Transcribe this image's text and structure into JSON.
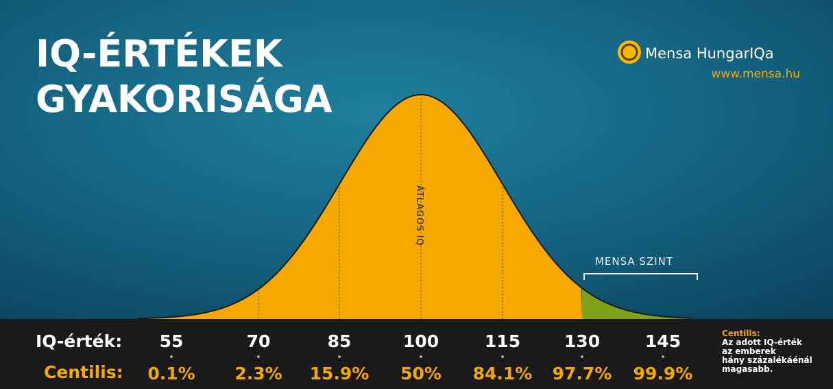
{
  "title": [
    "IQ-ÉRTÉKEK",
    "GYAKORISÁGA"
  ],
  "logo": {
    "name": "Mensa HungarIQa",
    "url": "www.mensa.hu"
  },
  "curve_label": "ÁTLAGOS IQ",
  "mensa_label": "MENSA SZINT",
  "table": {
    "row_labels": [
      "IQ-érték:",
      "Centilis:"
    ],
    "iq": [
      "55",
      "70",
      "85",
      "100",
      "115",
      "130",
      "145"
    ],
    "centiles": [
      "0.1%",
      "2.3%",
      "15.9%",
      "50%",
      "84.1%",
      "97.7%",
      "99.9%"
    ]
  },
  "note": {
    "title": "Centilis:",
    "lines": [
      "Az adott IQ-érték",
      "az emberek",
      "hány százalékáénál",
      "magasabb."
    ]
  }
}
